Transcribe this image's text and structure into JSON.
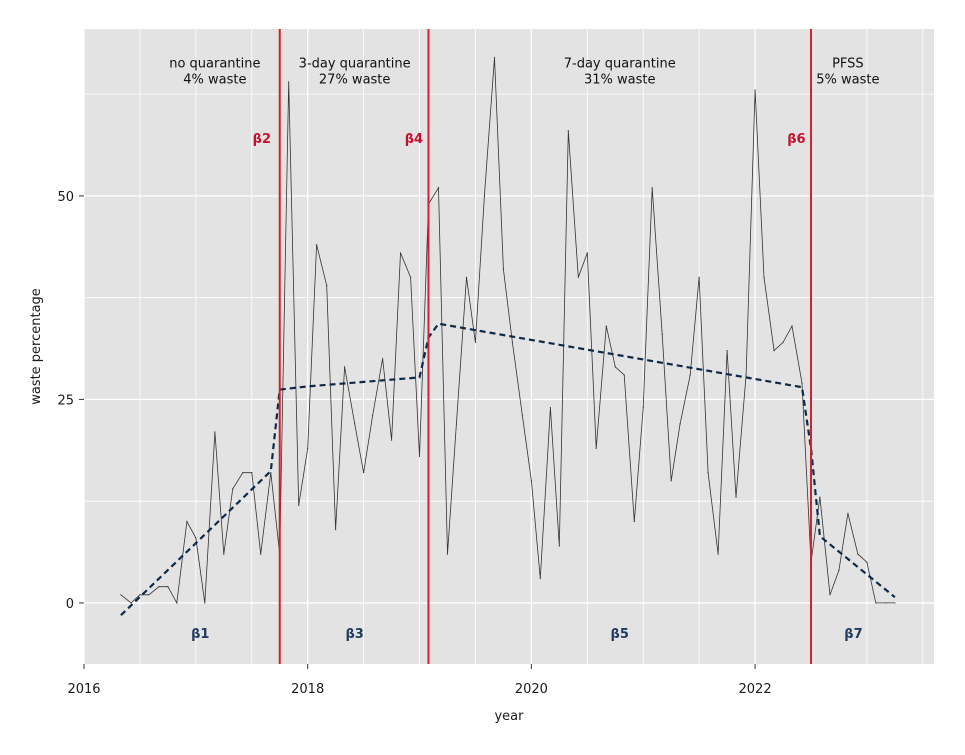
{
  "chart_data": {
    "type": "line",
    "xlabel": "year",
    "ylabel": "waste percentage",
    "xlim": [
      2016,
      2023.6
    ],
    "ylim": [
      -7.5,
      70.5
    ],
    "x_ticks": [
      {
        "value": 2016,
        "label": "2016"
      },
      {
        "value": 2018,
        "label": "2018"
      },
      {
        "value": 2020,
        "label": "2020"
      },
      {
        "value": 2022,
        "label": "2022"
      }
    ],
    "y_ticks": [
      {
        "value": 0,
        "label": "0"
      },
      {
        "value": 25,
        "label": "25"
      },
      {
        "value": 50,
        "label": "50"
      }
    ],
    "grid": true,
    "colors": {
      "panel": "#e3e3e3",
      "observed": "#333333",
      "fitted": "#0d2a4a",
      "breakpoint": "#d0212e",
      "beta_red": "#c8102e",
      "beta_blue": "#1f3a5f"
    },
    "series": [
      {
        "style": "solid",
        "x": [
          2016.33,
          2016.42,
          2016.5,
          2016.58,
          2016.67,
          2016.75,
          2016.83,
          2016.92,
          2017.0,
          2017.08,
          2017.17,
          2017.25,
          2017.33,
          2017.42,
          2017.5,
          2017.58,
          2017.67,
          2017.75,
          2017.83,
          2017.92,
          2018.0,
          2018.08,
          2018.17,
          2018.25,
          2018.33,
          2018.42,
          2018.5,
          2018.58,
          2018.67,
          2018.75,
          2018.83,
          2018.92,
          2019.0,
          2019.08,
          2019.17,
          2019.25,
          2019.33,
          2019.42,
          2019.5,
          2019.58,
          2019.67,
          2019.75,
          2019.83,
          2019.92,
          2020.0,
          2020.08,
          2020.17,
          2020.25,
          2020.33,
          2020.42,
          2020.5,
          2020.58,
          2020.67,
          2020.75,
          2020.83,
          2020.92,
          2021.0,
          2021.08,
          2021.17,
          2021.25,
          2021.33,
          2021.42,
          2021.5,
          2021.58,
          2021.67,
          2021.75,
          2021.83,
          2021.92,
          2022.0,
          2022.08,
          2022.17,
          2022.25,
          2022.33,
          2022.42,
          2022.5,
          2022.58,
          2022.67,
          2022.75,
          2022.83,
          2022.92,
          2023.0,
          2023.08,
          2023.17,
          2023.25
        ],
        "values": [
          1,
          0,
          1,
          1,
          2,
          2,
          0,
          10,
          8,
          0,
          21,
          6,
          14,
          16,
          16,
          6,
          16,
          6,
          64,
          12,
          19,
          44,
          39,
          9,
          29,
          22,
          16,
          23,
          30,
          20,
          43,
          40,
          18,
          49,
          51,
          6,
          22,
          40,
          32,
          50,
          67,
          41,
          32,
          23,
          15,
          3,
          24,
          7,
          58,
          40,
          43,
          19,
          34,
          29,
          28,
          10,
          24,
          51,
          33,
          15,
          22,
          28,
          40,
          16,
          6,
          31,
          13,
          28,
          63,
          40,
          31,
          32,
          34,
          27,
          5,
          13,
          1,
          4,
          11,
          6,
          5,
          0,
          0,
          0
        ]
      },
      {
        "style": "dashed",
        "x": [
          2016.33,
          2017.67,
          2017.75,
          2018.0,
          2019.0,
          2019.08,
          2019.17,
          2022.42,
          2022.5,
          2022.58,
          2023.25
        ],
        "values": [
          -1.5,
          16.2,
          26.2,
          26.6,
          27.7,
          32.6,
          34.3,
          26.5,
          19.0,
          8.2,
          0.7
        ]
      }
    ],
    "breakpoints": [
      2017.75,
      2019.08,
      2022.5
    ],
    "annotations": [
      {
        "x": 2017.17,
        "y": 65.8,
        "text": "no quarantine",
        "kind": "phase"
      },
      {
        "x": 2017.17,
        "y": 63.8,
        "text": "4% waste",
        "kind": "phase"
      },
      {
        "x": 2018.42,
        "y": 65.8,
        "text": "3-day quarantine",
        "kind": "phase"
      },
      {
        "x": 2018.42,
        "y": 63.8,
        "text": "27% waste",
        "kind": "phase"
      },
      {
        "x": 2020.79,
        "y": 65.8,
        "text": "7-day quarantine",
        "kind": "phase"
      },
      {
        "x": 2020.79,
        "y": 63.8,
        "text": "31% waste",
        "kind": "phase"
      },
      {
        "x": 2022.83,
        "y": 65.8,
        "text": "PFSS",
        "kind": "phase"
      },
      {
        "x": 2022.83,
        "y": 63.8,
        "text": "5% waste",
        "kind": "phase"
      },
      {
        "x": 2017.59,
        "y": 56.5,
        "text": "β2",
        "kind": "beta_red"
      },
      {
        "x": 2018.95,
        "y": 56.5,
        "text": "β4",
        "kind": "beta_red"
      },
      {
        "x": 2022.37,
        "y": 56.5,
        "text": "β6",
        "kind": "beta_red"
      },
      {
        "x": 2017.04,
        "y": -4.3,
        "text": "β1",
        "kind": "beta_blue"
      },
      {
        "x": 2018.42,
        "y": -4.3,
        "text": "β3",
        "kind": "beta_blue"
      },
      {
        "x": 2020.79,
        "y": -4.3,
        "text": "β5",
        "kind": "beta_blue"
      },
      {
        "x": 2022.88,
        "y": -4.3,
        "text": "β7",
        "kind": "beta_blue"
      }
    ]
  }
}
